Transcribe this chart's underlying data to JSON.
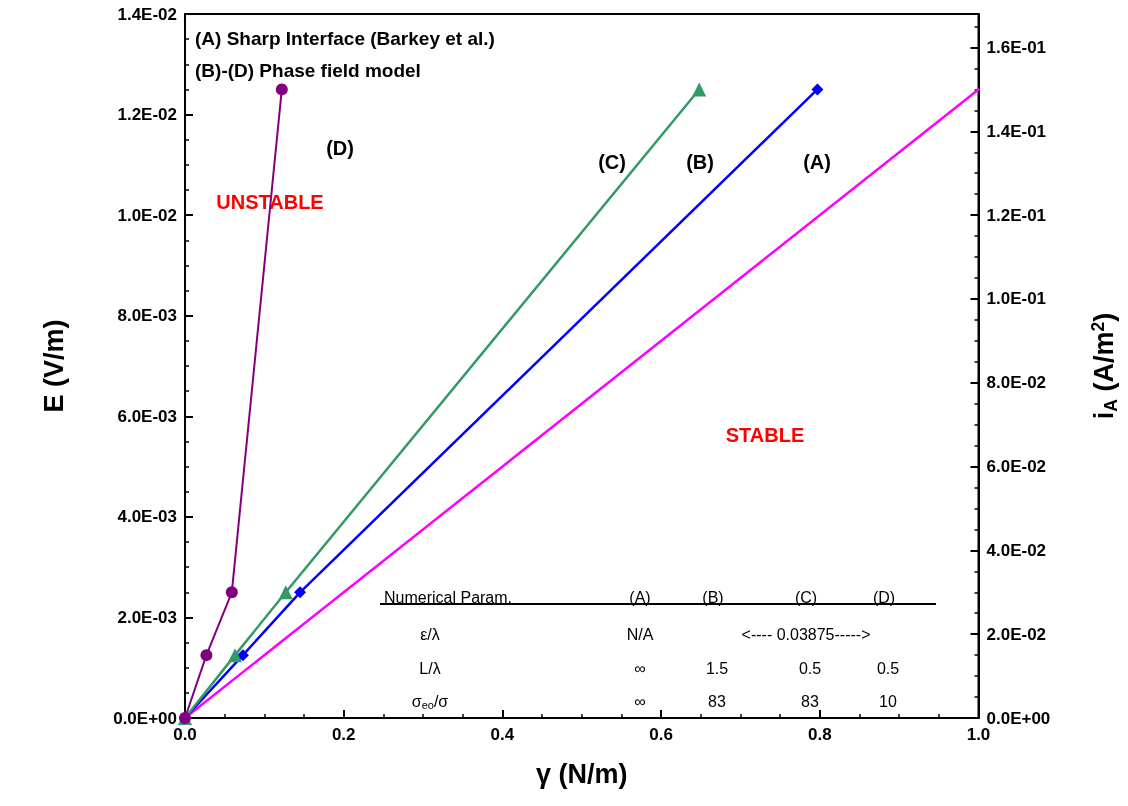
{
  "chart_data": {
    "type": "line",
    "xlabel": "γ (N/m)",
    "ylabel": "E (V/m)",
    "y2label": "i$_{A}$ (A/m$^{2}$)",
    "xlim": [
      0,
      1.0
    ],
    "xticks": [
      {
        "value": 0,
        "label": "0.0"
      },
      0.2,
      0.4,
      0.6,
      0.8,
      {
        "value": 1.0,
        "label": "1.0"
      }
    ],
    "ylim": [
      0,
      0.014
    ],
    "yticks": [
      {
        "value": 0,
        "label": "0.0E+00"
      },
      {
        "value": 0.002,
        "label": "2.0E-03"
      },
      {
        "value": 0.004,
        "label": "4.0E-03"
      },
      {
        "value": 0.006,
        "label": "6.0E-03"
      },
      {
        "value": 0.008,
        "label": "8.0E-03"
      },
      {
        "value": 0.01,
        "label": "1.0E-02"
      },
      {
        "value": 0.012,
        "label": "1.2E-02"
      },
      {
        "value": 0.014,
        "label": "1.4E-02"
      }
    ],
    "y2lim": [
      0,
      0.168
    ],
    "y2ticks": [
      {
        "value": 0,
        "label": "0.0E+00"
      },
      {
        "value": 0.02,
        "label": "2.0E-02"
      },
      {
        "value": 0.04,
        "label": "4.0E-02"
      },
      {
        "value": 0.06,
        "label": "6.0E-02"
      },
      {
        "value": 0.08,
        "label": "8.0E-02"
      },
      {
        "value": 0.1,
        "label": "1.0E-01"
      },
      {
        "value": 0.12,
        "label": "1.2E-01"
      },
      {
        "value": 0.14,
        "label": "1.4E-01"
      },
      {
        "value": 0.16,
        "label": "1.6E-01"
      }
    ],
    "series": [
      {
        "color": "#ff00ff",
        "marker": "none",
        "x": [
          0,
          1.0
        ],
        "values": [
          0,
          0.0125
        ]
      },
      {
        "color": "#0000ff",
        "marker": "diamond",
        "x": [
          0,
          0.073,
          0.145,
          0.797
        ],
        "values": [
          0,
          0.00125,
          0.0025,
          0.0125
        ]
      },
      {
        "color": "#339966",
        "marker": "triangle",
        "x": [
          0,
          0.063,
          0.127,
          0.648
        ],
        "values": [
          0,
          0.00125,
          0.0025,
          0.0125
        ]
      },
      {
        "color": "#800080",
        "marker": "circle",
        "x": [
          0,
          0.027,
          0.059,
          0.122
        ],
        "values": [
          0,
          0.00125,
          0.0025,
          0.0125
        ]
      }
    ],
    "annotations": [
      "(A) Sharp Interface (Barkey et al.)",
      "(B)-(D) Phase field model",
      "UNSTABLE",
      "STABLE",
      "(A)",
      "(B)",
      "(C)",
      "(D)",
      "Numerical Param.",
      "(A)",
      "(B)",
      "(C)",
      "(D)",
      "ε/λ",
      "N/A",
      "<---- 0.03875----->",
      "L/λ",
      "∞",
      "1.5",
      "0.5",
      "0.5",
      "σ$_{eo}$/σ",
      "∞",
      "83",
      "83",
      "10"
    ]
  }
}
